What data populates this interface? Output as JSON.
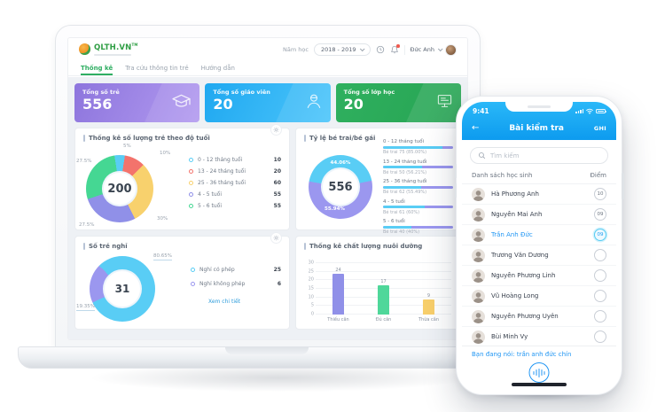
{
  "dashboard": {
    "logo_text": "QLTH.VN",
    "logo_tm": "TM",
    "nav_tabs": [
      {
        "label": "Thống kê",
        "active": true
      },
      {
        "label": "Tra cứu thông tin trẻ",
        "active": false
      },
      {
        "label": "Hướng dẫn",
        "active": false
      }
    ],
    "header": {
      "year_label": "Năm học",
      "year_value": "2018 - 2019",
      "user_name": "Đức Anh"
    },
    "stat_cards": [
      {
        "label": "Tổng số trẻ",
        "value": "556",
        "icon": "graduation-cap-icon",
        "gradient": [
          "#8d75dd",
          "#b29af0"
        ]
      },
      {
        "label": "Tổng số giáo viên",
        "value": "20",
        "icon": "teacher-icon",
        "gradient": [
          "#1fa8f0",
          "#4cc5fb"
        ]
      },
      {
        "label": "Tổng số lớp học",
        "value": "20",
        "icon": "classroom-icon",
        "gradient": [
          "#2fb05f",
          "#27a453"
        ]
      }
    ]
  },
  "chart_data": [
    {
      "type": "pie",
      "title": "Thống kê số lượng trẻ theo độ tuổi",
      "center_label": "200",
      "start_angle": 351,
      "slices": [
        {
          "label": "0 - 12 tháng tuổi",
          "value": 10,
          "pct": 5,
          "pct_label": "5%",
          "color": "#59cdf5"
        },
        {
          "label": "13 - 24 tháng tuổi",
          "value": 20,
          "pct": 10,
          "pct_label": "10%",
          "color": "#f3736c"
        },
        {
          "label": "25 - 36 tháng tuổi",
          "value": 60,
          "pct": 30,
          "pct_label": "30%",
          "color": "#f8d16d"
        },
        {
          "label": "4 - 5 tuổi",
          "value": 55,
          "pct": 27.5,
          "pct_label": "27.5%",
          "color": "#9090e8"
        },
        {
          "label": "5 - 6 tuổi",
          "value": 55,
          "pct": 27.5,
          "pct_label": "27.5%",
          "color": "#45d793"
        }
      ]
    },
    {
      "type": "pie",
      "title": "Tỷ lệ bé trai/bé gái",
      "center_label": "556",
      "start_angle": 280,
      "slices": [
        {
          "label": "Bé trai",
          "pct": 44.06,
          "pct_label": "44.06%",
          "color": "#59cdf5"
        },
        {
          "label": "Bé gái",
          "pct": 55.94,
          "pct_label": "55.94%",
          "color": "#9b97ef"
        }
      ],
      "breakdown": [
        {
          "label": "0 - 12 tháng tuổi",
          "detail": "Bé trai 75 (85.00%)",
          "pct": 85
        },
        {
          "label": "13 - 24 tháng tuổi",
          "detail": "Bé trai 50 (56.21%)",
          "pct": 56
        },
        {
          "label": "25 - 36 tháng tuổi",
          "detail": "Bé trai 62 (55.49%)",
          "pct": 55
        },
        {
          "label": "4 - 5 tuổi",
          "detail": "Bé trai 61 (60%)",
          "pct": 60
        },
        {
          "label": "5 - 6 tuổi",
          "detail": "Bé trai 40 (40%)",
          "pct": 40
        }
      ]
    },
    {
      "type": "pie",
      "title": "Số trẻ nghỉ",
      "center_label": "31",
      "start_angle": 315,
      "link_label": "Xem chi tiết",
      "slices": [
        {
          "label": "Nghỉ có phép",
          "value": 25,
          "pct": 80.65,
          "pct_label": "80.65%",
          "color": "#59cdf5"
        },
        {
          "label": "Nghỉ không phép",
          "value": 6,
          "pct": 19.35,
          "pct_label": "19.35%",
          "color": "#9b97ef"
        }
      ]
    },
    {
      "type": "bar",
      "title": "Thống kê chất lượng nuôi dưỡng",
      "categories": [
        "Thiếu cân",
        "Đủ cân",
        "Thừa cân"
      ],
      "values": [
        24,
        17,
        9
      ],
      "colors": [
        "#9090e8",
        "#4fd79a",
        "#f8cf6b"
      ],
      "ylim": [
        0,
        30
      ],
      "yticks": [
        0,
        5,
        10,
        15,
        20,
        25,
        30
      ]
    }
  ],
  "phone": {
    "status_time": "9:41",
    "nav": {
      "back_icon": "←",
      "title": "Bài kiểm tra",
      "action_label": "GHI"
    },
    "search_placeholder": "Tìm kiếm",
    "list_header": {
      "title": "Danh sách học sinh",
      "score_label": "Điểm"
    },
    "students": [
      {
        "name": "Hà Phương Anh",
        "score": "10",
        "highlight": false
      },
      {
        "name": "Nguyễn Mai Anh",
        "score": "09",
        "highlight": false
      },
      {
        "name": "Trần Anh Đức",
        "score": "09",
        "highlight": true
      },
      {
        "name": "Trương Văn Dương",
        "score": "",
        "highlight": false
      },
      {
        "name": "Nguyễn Phương Linh",
        "score": "",
        "highlight": false
      },
      {
        "name": "Vũ Hoàng Long",
        "score": "",
        "highlight": false
      },
      {
        "name": "Nguyễn Phương Uyên",
        "score": "",
        "highlight": false
      },
      {
        "name": "Bùi Minh Vy",
        "score": "",
        "highlight": false
      }
    ],
    "voice_text": "Bạn đang nói: trần anh đức chín"
  }
}
